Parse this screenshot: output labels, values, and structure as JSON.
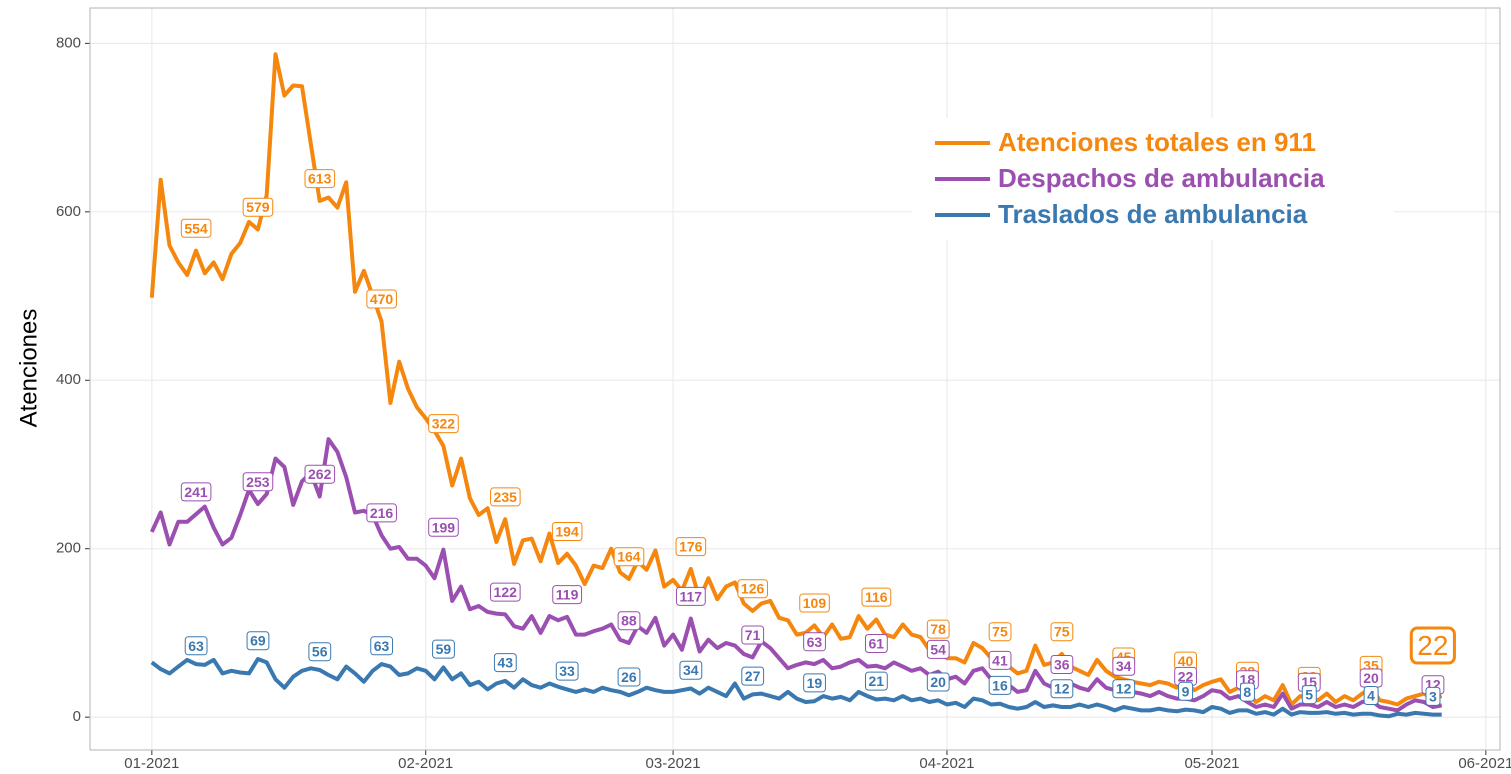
{
  "chart_data": {
    "type": "line",
    "y_label": "Atenciones",
    "x": [
      0,
      1,
      2,
      3,
      4,
      5,
      6,
      7,
      8,
      9,
      10,
      11,
      12,
      13,
      14,
      15,
      16,
      17,
      18,
      19,
      20,
      21,
      22,
      23,
      24,
      25,
      26,
      27,
      28,
      29,
      30,
      31,
      32,
      33,
      34,
      35,
      36,
      37,
      38,
      39,
      40,
      41,
      42,
      43,
      44,
      45,
      46,
      47,
      48,
      49,
      50,
      51,
      52,
      53,
      54,
      55,
      56,
      57,
      58,
      59,
      60,
      61,
      62,
      63,
      64,
      65,
      66,
      67,
      68,
      69,
      70,
      71,
      72,
      73,
      74,
      75,
      76,
      77,
      78,
      79,
      80,
      81,
      82,
      83,
      84,
      85,
      86,
      87,
      88,
      89,
      90,
      91,
      92,
      93,
      94,
      95,
      96,
      97,
      98,
      99,
      100,
      101,
      102,
      103,
      104,
      105,
      106,
      107,
      108,
      109,
      110,
      111,
      112,
      113,
      114,
      115,
      116,
      117,
      118,
      119,
      120,
      121,
      122,
      123,
      124,
      125,
      126,
      127,
      128,
      129,
      130,
      131,
      132,
      133,
      134,
      135,
      136,
      137,
      138,
      139,
      140,
      141,
      142,
      143,
      144,
      145,
      146
    ],
    "series": [
      {
        "name": "Atenciones totales en 911",
        "color": "#f5870f",
        "values": [
          498,
          638,
          560,
          540,
          525,
          554,
          527,
          540,
          520,
          550,
          563,
          588,
          579,
          620,
          787,
          738,
          750,
          749,
          680,
          613,
          617,
          605,
          635,
          505,
          530,
          500,
          470,
          373,
          422,
          390,
          368,
          355,
          340,
          322,
          275,
          307,
          260,
          240,
          248,
          208,
          235,
          182,
          210,
          212,
          185,
          218,
          183,
          194,
          180,
          158,
          180,
          177,
          200,
          172,
          164,
          185,
          175,
          198,
          155,
          163,
          150,
          176,
          140,
          165,
          140,
          155,
          160,
          135,
          126,
          135,
          138,
          118,
          115,
          98,
          100,
          109,
          95,
          110,
          93,
          95,
          120,
          105,
          116,
          98,
          95,
          110,
          98,
          95,
          80,
          78,
          70,
          70,
          65,
          88,
          82,
          70,
          75,
          60,
          52,
          55,
          85,
          62,
          65,
          75,
          60,
          55,
          50,
          68,
          55,
          48,
          45,
          42,
          40,
          38,
          42,
          40,
          35,
          40,
          32,
          38,
          42,
          45,
          30,
          35,
          28,
          18,
          25,
          20,
          38,
          15,
          25,
          22,
          20,
          28,
          18,
          25,
          20,
          28,
          35,
          20,
          18,
          15,
          22,
          25,
          28,
          22,
          25
        ]
      },
      {
        "name": "Despachos de ambulancia",
        "color": "#9b4fb0",
        "values": [
          220,
          243,
          205,
          232,
          232,
          241,
          250,
          225,
          205,
          213,
          240,
          270,
          253,
          265,
          307,
          297,
          252,
          280,
          290,
          262,
          330,
          315,
          285,
          243,
          245,
          240,
          216,
          200,
          202,
          188,
          188,
          180,
          165,
          199,
          138,
          155,
          128,
          132,
          125,
          123,
          122,
          108,
          105,
          120,
          100,
          120,
          115,
          119,
          98,
          98,
          102,
          105,
          110,
          92,
          88,
          108,
          100,
          118,
          85,
          98,
          80,
          117,
          78,
          92,
          82,
          88,
          85,
          75,
          71,
          90,
          82,
          70,
          58,
          62,
          65,
          63,
          68,
          58,
          60,
          65,
          68,
          60,
          61,
          58,
          65,
          60,
          55,
          58,
          50,
          54,
          45,
          48,
          40,
          55,
          58,
          45,
          41,
          38,
          30,
          32,
          55,
          40,
          35,
          36,
          40,
          35,
          32,
          45,
          35,
          32,
          34,
          30,
          28,
          25,
          30,
          25,
          22,
          22,
          20,
          25,
          32,
          30,
          22,
          25,
          18,
          12,
          15,
          12,
          28,
          10,
          15,
          15,
          12,
          18,
          12,
          15,
          12,
          18,
          20,
          12,
          10,
          8,
          15,
          20,
          18,
          12,
          14
        ]
      },
      {
        "name": "Traslados de ambulancia",
        "color": "#3a78b0",
        "values": [
          65,
          57,
          52,
          60,
          68,
          63,
          62,
          68,
          52,
          55,
          53,
          52,
          69,
          65,
          45,
          35,
          48,
          55,
          58,
          56,
          50,
          45,
          60,
          52,
          42,
          55,
          63,
          60,
          50,
          52,
          58,
          55,
          45,
          59,
          45,
          52,
          38,
          42,
          33,
          40,
          43,
          35,
          45,
          38,
          35,
          40,
          36,
          33,
          30,
          33,
          30,
          35,
          32,
          30,
          26,
          30,
          35,
          32,
          30,
          30,
          32,
          34,
          28,
          35,
          30,
          25,
          40,
          22,
          27,
          28,
          25,
          22,
          30,
          22,
          18,
          19,
          25,
          22,
          24,
          20,
          30,
          25,
          21,
          22,
          20,
          25,
          20,
          22,
          18,
          20,
          15,
          17,
          12,
          22,
          20,
          15,
          16,
          12,
          10,
          12,
          18,
          12,
          14,
          12,
          12,
          15,
          12,
          15,
          12,
          8,
          12,
          10,
          8,
          8,
          10,
          8,
          7,
          9,
          8,
          6,
          12,
          10,
          5,
          8,
          8,
          4,
          6,
          3,
          10,
          3,
          6,
          5,
          5,
          6,
          4,
          5,
          3,
          4,
          4,
          2,
          1,
          4,
          3,
          5,
          4,
          3,
          3
        ]
      }
    ],
    "xlim": [
      -7,
      152.6
    ],
    "xticks": [
      {
        "value": 0,
        "label": "01-2021"
      },
      {
        "value": 31,
        "label": "02-2021"
      },
      {
        "value": 59,
        "label": "03-2021"
      },
      {
        "value": 90,
        "label": "04-2021"
      },
      {
        "value": 120,
        "label": "05-2021"
      },
      {
        "value": 151,
        "label": "06-2021"
      }
    ],
    "ylim": [
      -39,
      842
    ],
    "yticks": [
      0,
      200,
      400,
      600,
      800
    ],
    "grid": true,
    "legend": "top-right"
  }
}
